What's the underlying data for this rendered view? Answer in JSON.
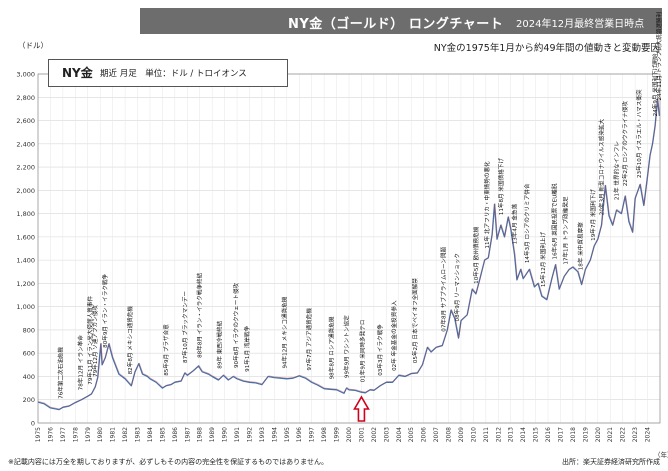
{
  "header": {
    "title": "NY金（ゴールド） ロングチャート",
    "date": "2024年12月最終営業日時点"
  },
  "subtitle": "NY金の1975年1月から約49年間の値動きと変動要因",
  "unit_label": "（ドル）",
  "legend": {
    "title": "NY金",
    "desc": "期近 月足　単位：ドル / トロイオンス"
  },
  "footnote": "※記載内容には万全を期しておりますが、必ずしもその内容の完全性を保証するものではありません。",
  "source": "出所：楽天証券経済研究所作成",
  "colors": {
    "line": "#4a6fa8",
    "accent_line": "#c0392b",
    "arrow": "#d0021b",
    "header_bg": "#6d6d6d"
  },
  "chart_data": {
    "type": "line",
    "title": "NY金",
    "xlabel": "（年）",
    "ylabel": "（ドル）",
    "ylim": [
      0,
      3000
    ],
    "xlim": [
      1975,
      2025
    ],
    "yticks": [
      "0",
      "200",
      "400",
      "600",
      "800",
      "1,000",
      "1,200",
      "1,400",
      "1,600",
      "1,800",
      "2,000",
      "2,200",
      "2,400",
      "2,600",
      "2,800",
      "3,000"
    ],
    "xticks": [
      "1975",
      "1976",
      "1977",
      "1978",
      "1979",
      "1980",
      "1981",
      "1982",
      "1983",
      "1984",
      "1985",
      "1986",
      "1987",
      "1988",
      "1989",
      "1990",
      "1991",
      "1992",
      "1993",
      "1994",
      "1995",
      "1996",
      "1997",
      "1998",
      "1999",
      "2000",
      "2001",
      "2002",
      "2003",
      "2004",
      "2005",
      "2006",
      "2007",
      "2008",
      "2009",
      "2010",
      "2011",
      "2012",
      "2013",
      "2014",
      "2015",
      "2016",
      "2017",
      "2018",
      "2019",
      "2020",
      "2021",
      "2022",
      "2023",
      "2024"
    ],
    "grid": true,
    "series": [
      {
        "name": "NY金",
        "points": [
          [
            1975.0,
            180
          ],
          [
            1975.5,
            165
          ],
          [
            1976.0,
            130
          ],
          [
            1976.7,
            115
          ],
          [
            1977.0,
            135
          ],
          [
            1977.5,
            145
          ],
          [
            1978.0,
            175
          ],
          [
            1978.5,
            200
          ],
          [
            1979.0,
            230
          ],
          [
            1979.3,
            250
          ],
          [
            1979.6,
            310
          ],
          [
            1979.8,
            390
          ],
          [
            1980.05,
            680
          ],
          [
            1980.15,
            500
          ],
          [
            1980.4,
            560
          ],
          [
            1980.7,
            680
          ],
          [
            1981.0,
            560
          ],
          [
            1981.5,
            420
          ],
          [
            1982.0,
            380
          ],
          [
            1982.5,
            320
          ],
          [
            1982.8,
            440
          ],
          [
            1983.1,
            510
          ],
          [
            1983.4,
            420
          ],
          [
            1983.8,
            400
          ],
          [
            1984.0,
            380
          ],
          [
            1984.5,
            350
          ],
          [
            1985.0,
            300
          ],
          [
            1985.3,
            320
          ],
          [
            1985.7,
            330
          ],
          [
            1986.0,
            350
          ],
          [
            1986.5,
            360
          ],
          [
            1986.8,
            430
          ],
          [
            1987.0,
            410
          ],
          [
            1987.5,
            450
          ],
          [
            1987.9,
            490
          ],
          [
            1988.2,
            440
          ],
          [
            1988.7,
            420
          ],
          [
            1989.0,
            400
          ],
          [
            1989.5,
            370
          ],
          [
            1989.9,
            410
          ],
          [
            1990.3,
            370
          ],
          [
            1990.7,
            400
          ],
          [
            1991.0,
            380
          ],
          [
            1991.5,
            360
          ],
          [
            1992.0,
            350
          ],
          [
            1992.5,
            345
          ],
          [
            1993.0,
            330
          ],
          [
            1993.5,
            400
          ],
          [
            1994.0,
            390
          ],
          [
            1994.5,
            385
          ],
          [
            1995.0,
            380
          ],
          [
            1995.5,
            385
          ],
          [
            1996.0,
            405
          ],
          [
            1996.5,
            385
          ],
          [
            1997.0,
            350
          ],
          [
            1997.5,
            325
          ],
          [
            1998.0,
            295
          ],
          [
            1998.5,
            290
          ],
          [
            1999.0,
            285
          ],
          [
            1999.6,
            255
          ],
          [
            1999.8,
            300
          ],
          [
            2000.0,
            285
          ],
          [
            2000.5,
            280
          ],
          [
            2001.0,
            265
          ],
          [
            2001.3,
            260
          ],
          [
            2001.7,
            285
          ],
          [
            2002.0,
            280
          ],
          [
            2002.5,
            320
          ],
          [
            2003.0,
            350
          ],
          [
            2003.5,
            350
          ],
          [
            2004.0,
            410
          ],
          [
            2004.5,
            400
          ],
          [
            2005.0,
            425
          ],
          [
            2005.5,
            430
          ],
          [
            2005.9,
            500
          ],
          [
            2006.3,
            650
          ],
          [
            2006.6,
            610
          ],
          [
            2007.0,
            650
          ],
          [
            2007.5,
            665
          ],
          [
            2007.9,
            800
          ],
          [
            2008.2,
            970
          ],
          [
            2008.5,
            900
          ],
          [
            2008.8,
            730
          ],
          [
            2009.0,
            880
          ],
          [
            2009.5,
            930
          ],
          [
            2009.9,
            1150
          ],
          [
            2010.2,
            1110
          ],
          [
            2010.5,
            1230
          ],
          [
            2010.9,
            1400
          ],
          [
            2011.2,
            1420
          ],
          [
            2011.5,
            1620
          ],
          [
            2011.7,
            1880
          ],
          [
            2011.9,
            1580
          ],
          [
            2012.2,
            1700
          ],
          [
            2012.5,
            1600
          ],
          [
            2012.8,
            1770
          ],
          [
            2013.0,
            1670
          ],
          [
            2013.3,
            1450
          ],
          [
            2013.5,
            1230
          ],
          [
            2013.8,
            1320
          ],
          [
            2014.0,
            1240
          ],
          [
            2014.5,
            1320
          ],
          [
            2014.9,
            1170
          ],
          [
            2015.2,
            1200
          ],
          [
            2015.5,
            1090
          ],
          [
            2015.9,
            1060
          ],
          [
            2016.3,
            1240
          ],
          [
            2016.6,
            1360
          ],
          [
            2016.9,
            1150
          ],
          [
            2017.3,
            1260
          ],
          [
            2017.7,
            1320
          ],
          [
            2018.0,
            1340
          ],
          [
            2018.4,
            1300
          ],
          [
            2018.7,
            1190
          ],
          [
            2019.0,
            1320
          ],
          [
            2019.4,
            1400
          ],
          [
            2019.7,
            1520
          ],
          [
            2020.0,
            1580
          ],
          [
            2020.3,
            1700
          ],
          [
            2020.6,
            2040
          ],
          [
            2020.9,
            1780
          ],
          [
            2021.2,
            1700
          ],
          [
            2021.5,
            1830
          ],
          [
            2021.9,
            1800
          ],
          [
            2022.2,
            1950
          ],
          [
            2022.5,
            1730
          ],
          [
            2022.8,
            1640
          ],
          [
            2023.0,
            1930
          ],
          [
            2023.4,
            2050
          ],
          [
            2023.7,
            1870
          ],
          [
            2023.95,
            2080
          ],
          [
            2024.2,
            2300
          ],
          [
            2024.4,
            2400
          ],
          [
            2024.6,
            2550
          ],
          [
            2024.8,
            2780
          ],
          [
            2024.95,
            2640
          ]
        ]
      }
    ],
    "annotations": [
      {
        "x": 1976.8,
        "text": "76年第二次石油危機"
      },
      {
        "x": 1978.4,
        "text": "78年12月 イラン革命"
      },
      {
        "x": 1979.2,
        "text": "79年11月 イラン米大使館人質事件"
      },
      {
        "x": 1979.6,
        "text": "79年12月 ソ連アフガン侵攻"
      },
      {
        "x": 1980.4,
        "text": "80年9月 イラン・イラク戦争"
      },
      {
        "x": 1982.4,
        "text": "82年8月 メキシコ通貨危機"
      },
      {
        "x": 1985.3,
        "text": "85年9月 プラザ合意"
      },
      {
        "x": 1986.8,
        "text": "87年10月 ブラックマンデー"
      },
      {
        "x": 1988.0,
        "text": "88年8月 イラン・イラク戦争終結"
      },
      {
        "x": 1989.6,
        "text": "89年 東西冷戦終結"
      },
      {
        "x": 1990.9,
        "text": "90年8月 イラクのクウェート侵攻"
      },
      {
        "x": 1991.8,
        "text": "91年1月 湾岸戦争"
      },
      {
        "x": 1994.8,
        "text": "94年12月 メキシコ通貨危機"
      },
      {
        "x": 1996.8,
        "text": "97年7月 アジア通貨危機"
      },
      {
        "x": 1998.6,
        "text": "98年8月 ロシア通貨危機"
      },
      {
        "x": 1999.8,
        "text": "99年9月 ワシントン協定"
      },
      {
        "x": 2001.1,
        "text": "01年9月 米同時多発テロ"
      },
      {
        "x": 2002.5,
        "text": "03年3月 イラク戦争"
      },
      {
        "x": 2003.6,
        "text": "02年 年金基金の金投資参入"
      },
      {
        "x": 2005.3,
        "text": "05年2月 日本でペイオフ全面解禁"
      },
      {
        "x": 2007.6,
        "text": "07年8月 サブプライムローン問題"
      },
      {
        "x": 2008.7,
        "text": "08年9月 リーマンショック"
      },
      {
        "x": 2010.2,
        "text": "10年5月 欧州債務危機"
      },
      {
        "x": 2011.1,
        "text": "11年 北アフリカ・中東情勢の悪化"
      },
      {
        "x": 2012.2,
        "text": "11年8月 米国債格下げ"
      },
      {
        "x": 2013.3,
        "text": "13年4月 金急落"
      },
      {
        "x": 2014.3,
        "text": "14年3月 ロシアのクリミア併合"
      },
      {
        "x": 2015.6,
        "text": "15年12月 米国利上げ"
      },
      {
        "x": 2016.5,
        "text": "16年6月 英国民投票でEU離脱"
      },
      {
        "x": 2017.4,
        "text": "17年1月 トランプ政権発足"
      },
      {
        "x": 2018.6,
        "text": "18年 米中貿易摩擦"
      },
      {
        "x": 2019.6,
        "text": "19年7月 米国利下げ"
      },
      {
        "x": 2020.3,
        "text": "20年3月 新型コロナウイルス感染拡大"
      },
      {
        "x": 2021.5,
        "text": "21年 世界的なインフレ"
      },
      {
        "x": 2022.2,
        "text": "22年2月 ロシアのウクライナ侵攻"
      },
      {
        "x": 2023.3,
        "text": "23年10月 イスラエル・ハマス衝突"
      },
      {
        "x": 2024.6,
        "text": "24年9月 米国利下げ開始"
      },
      {
        "x": 2024.9,
        "text": "24年11月 トランプ氏大統領選勝利"
      }
    ],
    "arrow_x": 2001.0
  }
}
